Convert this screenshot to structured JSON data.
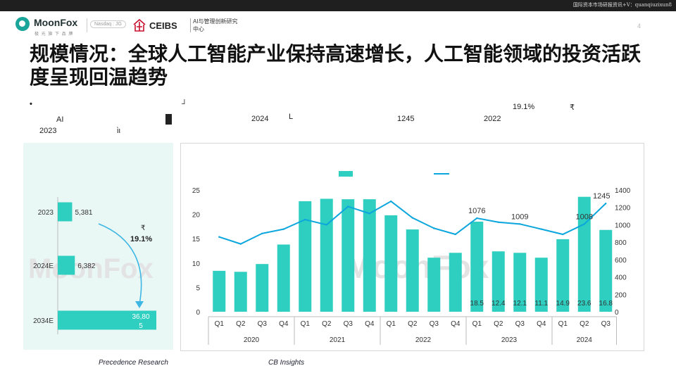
{
  "topbar": {
    "note": "国际资本市场研报资讯+V：quanqiuzixun8"
  },
  "header": {
    "brand": "MoonFox",
    "brand_sub": "极 光 旗 下 品 牌",
    "nasdaq": "Nasdaq : JG",
    "ceibs": "CEIBS",
    "ceibs_sub": "AI与管理创新研究中心",
    "page_number": "4"
  },
  "title": "规模情况：全球人工智能产业保持高速增长，人工智能领域的投资活跃度呈现回温趋势",
  "fragments": {
    "bullet": "•",
    "ai": "AI",
    "y2023": "2023",
    "lu": "ὶι",
    "bracket_r": "┘",
    "y2024": "2024",
    "bracket_l": "L",
    "v1245": "1245",
    "y2022": "2022",
    "pct": "19.1%",
    "r_sym": "₹"
  },
  "watermark": "MoonFox",
  "sources": {
    "left": "Precedence Research",
    "right": "CB Insights"
  },
  "colors": {
    "bar": "#2ecfc0",
    "line": "#0aa6dd",
    "arrow": "#3eb7e4",
    "panel": "#e9f7f5",
    "watermark": "#e3e3e3"
  },
  "chart_data": [
    {
      "type": "bar",
      "orientation": "horizontal",
      "categories": [
        "2023",
        "2024E",
        "2034E"
      ],
      "values": [
        5381,
        6382,
        36805
      ],
      "labels": [
        "5,381",
        "6,382",
        "36,805"
      ],
      "annotation": "19.1%",
      "annotation_symbol": "₹"
    },
    {
      "type": "bar",
      "x_quarters": [
        "Q1",
        "Q2",
        "Q3",
        "Q4",
        "Q1",
        "Q2",
        "Q3",
        "Q4",
        "Q1",
        "Q2",
        "Q3",
        "Q4",
        "Q1",
        "Q2",
        "Q3",
        "Q4",
        "Q1",
        "Q2",
        "Q3"
      ],
      "x_years": [
        {
          "label": "2020",
          "span": 4
        },
        {
          "label": "2021",
          "span": 4
        },
        {
          "label": "2022",
          "span": 4
        },
        {
          "label": "2023",
          "span": 4
        },
        {
          "label": "2024",
          "span": 3
        }
      ],
      "series": [
        {
          "type": "bar",
          "axis": "left",
          "values": [
            8.4,
            8.2,
            9.8,
            13.8,
            22.7,
            23.2,
            23.1,
            23.1,
            19.8,
            16.9,
            11.1,
            12.1,
            18.5,
            12.4,
            12.1,
            11.1,
            14.9,
            23.6,
            16.8
          ],
          "data_labels": [
            "",
            "",
            "",
            "",
            "",
            "",
            "",
            "",
            "",
            "",
            "",
            "",
            "18.5",
            "12.4",
            "12.1",
            "11.1",
            "14.9",
            "23.6",
            "16.8"
          ]
        },
        {
          "type": "line",
          "axis": "right",
          "values": [
            860,
            780,
            900,
            950,
            1060,
            1000,
            1210,
            1130,
            1270,
            1080,
            960,
            890,
            1076,
            1030,
            1009,
            950,
            890,
            1008,
            1245
          ],
          "data_labels": [
            "",
            "",
            "",
            "",
            "",
            "",
            "",
            "",
            "",
            "",
            "",
            "",
            "1076",
            "",
            "1009",
            "",
            "",
            "1008",
            "1245"
          ]
        }
      ],
      "y_left": {
        "ticks": [
          "0",
          "5",
          "10",
          "15",
          "20",
          "25"
        ],
        "range": [
          0,
          25
        ]
      },
      "y_right": {
        "ticks": [
          "0",
          "200",
          "400",
          "600",
          "800",
          "1000",
          "1200",
          "1400"
        ],
        "range": [
          0,
          1400
        ]
      },
      "legend": "top-center"
    }
  ]
}
